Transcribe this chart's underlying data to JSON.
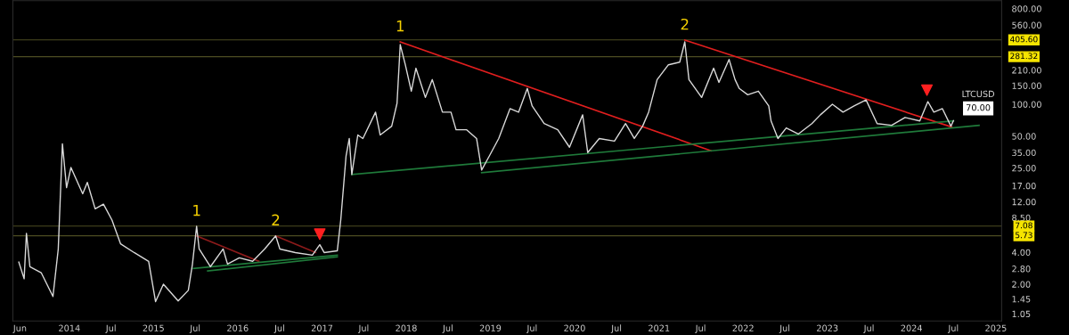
{
  "chart_data": {
    "type": "line",
    "log": "y",
    "grid": false,
    "legend": false,
    "xlim": [
      "2013-05-01",
      "2025-01-26"
    ],
    "ylim": [
      0.9,
      951
    ],
    "xticks": [
      {
        "value": "2013-06-01",
        "label": "Jun"
      },
      {
        "value": "2014-01-01",
        "label": "2014"
      },
      {
        "value": "2014-07-01",
        "label": "Jul"
      },
      {
        "value": "2015-01-01",
        "label": "2015"
      },
      {
        "value": "2015-07-01",
        "label": "Jul"
      },
      {
        "value": "2016-01-01",
        "label": "2016"
      },
      {
        "value": "2016-07-01",
        "label": "Jul"
      },
      {
        "value": "2017-01-01",
        "label": "2017"
      },
      {
        "value": "2017-07-01",
        "label": "Jul"
      },
      {
        "value": "2018-01-01",
        "label": "2018"
      },
      {
        "value": "2018-07-01",
        "label": "Jul"
      },
      {
        "value": "2019-01-01",
        "label": "2019"
      },
      {
        "value": "2019-07-01",
        "label": "Jul"
      },
      {
        "value": "2020-01-01",
        "label": "2020"
      },
      {
        "value": "2020-07-01",
        "label": "Jul"
      },
      {
        "value": "2021-01-01",
        "label": "2021"
      },
      {
        "value": "2021-07-01",
        "label": "Jul"
      },
      {
        "value": "2022-01-01",
        "label": "2022"
      },
      {
        "value": "2022-07-01",
        "label": "Jul"
      },
      {
        "value": "2023-01-01",
        "label": "2023"
      },
      {
        "value": "2023-07-01",
        "label": "Jul"
      },
      {
        "value": "2024-01-01",
        "label": "2024"
      },
      {
        "value": "2024-07-01",
        "label": "Jul"
      },
      {
        "value": "2025-01-01",
        "label": "2025"
      }
    ],
    "yticks": [
      {
        "value": 800,
        "label": "800.00"
      },
      {
        "value": 560,
        "label": "560.00"
      },
      {
        "value": 210,
        "label": "210.00"
      },
      {
        "value": 150,
        "label": "150.00"
      },
      {
        "value": 100,
        "label": "100.00"
      },
      {
        "value": 50,
        "label": "50.00"
      },
      {
        "value": 35,
        "label": "35.00"
      },
      {
        "value": 25,
        "label": "25.00"
      },
      {
        "value": 17,
        "label": "17.00"
      },
      {
        "value": 12,
        "label": "12.00"
      },
      {
        "value": 8.5,
        "label": "8.50"
      },
      {
        "value": 4,
        "label": "4.00"
      },
      {
        "value": 2.8,
        "label": "2.80"
      },
      {
        "value": 2,
        "label": "2.00"
      },
      {
        "value": 1.45,
        "label": "1.45"
      },
      {
        "value": 1.05,
        "label": "1.05"
      }
    ],
    "ref_lines": [
      {
        "axis": "y",
        "value": 405.6,
        "label": "405.60",
        "color": "#4d4d22"
      },
      {
        "axis": "y",
        "value": 281.32,
        "label": "281.32",
        "color": "#4d4d22"
      },
      {
        "axis": "y",
        "value": 7.08,
        "label": "7.08",
        "color": "#4d4d22"
      },
      {
        "axis": "y",
        "value": 5.73,
        "label": "5.73",
        "color": "#4d4d22"
      }
    ],
    "annotations": [
      {
        "text": "1",
        "x": "2015-07-07",
        "y": 7.05
      },
      {
        "text": "2",
        "x": "2016-06-14",
        "y": 5.72
      },
      {
        "text": "1",
        "x": "2017-12-06",
        "y": 388
      },
      {
        "text": "2",
        "x": "2021-04-23",
        "y": 403
      }
    ],
    "series": [
      {
        "name": "LTCUSD",
        "type": "line",
        "color": "#d9d9d9",
        "x": [
          "2013-05-27",
          "2013-06-19",
          "2013-06-29",
          "2013-07-14",
          "2013-09-01",
          "2013-10-22",
          "2013-11-14",
          "2013-12-02",
          "2013-12-20",
          "2014-01-08",
          "2014-02-28",
          "2014-03-20",
          "2014-04-23",
          "2014-05-29",
          "2014-07-05",
          "2014-08-11",
          "2014-10-09",
          "2014-12-11",
          "2015-01-10",
          "2015-02-13",
          "2015-04-18",
          "2015-06-01",
          "2015-06-19",
          "2015-07-07",
          "2015-07-18",
          "2015-09-05",
          "2015-10-30",
          "2015-11-18",
          "2016-01-08",
          "2016-03-06",
          "2016-04-27",
          "2016-06-14",
          "2016-07-02",
          "2016-09-07",
          "2016-11-20",
          "2016-12-22",
          "2017-01-10",
          "2017-03-08",
          "2017-03-23",
          "2017-04-15",
          "2017-04-29",
          "2017-05-10",
          "2017-06-05",
          "2017-06-27",
          "2017-08-21",
          "2017-09-10",
          "2017-10-30",
          "2017-11-22",
          "2017-12-06",
          "2017-12-28",
          "2018-01-23",
          "2018-02-12",
          "2018-03-25",
          "2018-04-24",
          "2018-06-07",
          "2018-07-14",
          "2018-08-05",
          "2018-09-19",
          "2018-11-02",
          "2018-11-24",
          "2018-12-27",
          "2019-02-06",
          "2019-03-27",
          "2019-05-03",
          "2019-06-10",
          "2019-07-01",
          "2019-08-22",
          "2019-10-20",
          "2019-12-10",
          "2020-02-05",
          "2020-02-27",
          "2020-04-17",
          "2020-06-22",
          "2020-08-09",
          "2020-09-16",
          "2020-10-22",
          "2020-11-17",
          "2020-12-24",
          "2021-02-11",
          "2021-04-01",
          "2021-04-23",
          "2021-05-11",
          "2021-07-05",
          "2021-08-26",
          "2021-09-18",
          "2021-11-01",
          "2021-11-27",
          "2021-12-15",
          "2022-01-21",
          "2022-03-08",
          "2022-04-22",
          "2022-05-02",
          "2022-06-01",
          "2022-07-07",
          "2022-08-28",
          "2022-10-26",
          "2022-12-02",
          "2023-01-23",
          "2023-03-10",
          "2023-04-27",
          "2023-06-18",
          "2023-08-05",
          "2023-10-07",
          "2023-12-04",
          "2024-02-06",
          "2024-03-12",
          "2024-04-07",
          "2024-05-14",
          "2024-06-20",
          "2024-07-01"
        ],
        "values": [
          3.23,
          2.25,
          6.05,
          2.93,
          2.57,
          1.53,
          4.3,
          42.4,
          16.3,
          25.3,
          14.3,
          18.3,
          10.3,
          11.4,
          8.06,
          4.82,
          3.98,
          3.29,
          1.37,
          2.0,
          1.39,
          1.75,
          3.1,
          7.05,
          4.3,
          2.93,
          4.3,
          3.1,
          3.55,
          3.29,
          4.3,
          5.72,
          4.3,
          3.98,
          3.76,
          4.72,
          3.98,
          4.13,
          8.06,
          32.4,
          47.5,
          21.7,
          51.3,
          47.5,
          84.2,
          51.3,
          62.1,
          102,
          366,
          236,
          133,
          219,
          116,
          171,
          84.2,
          84.2,
          57.5,
          57.5,
          47.5,
          23.9,
          32.4,
          47.5,
          90.9,
          84.2,
          141,
          96.3,
          65.7,
          57.5,
          39.3,
          79.5,
          35.0,
          47.5,
          44.9,
          65.7,
          47.5,
          62.1,
          84.2,
          171,
          236,
          250,
          388,
          171,
          116,
          219,
          161,
          265,
          171,
          141,
          123,
          133,
          96.3,
          69.6,
          47.5,
          59.8,
          52.3,
          65.7,
          79.5,
          100,
          84.2,
          96.3,
          110,
          65.7,
          63.3,
          75.1,
          69.6,
          106,
          84.2,
          90.9,
          62.1,
          70.0
        ],
        "value_labels": [
          null,
          null,
          null,
          null,
          null,
          null,
          null,
          null,
          null,
          null,
          null,
          null,
          null,
          null,
          null,
          null,
          null,
          null,
          null,
          null,
          null,
          null,
          null,
          null,
          null,
          null,
          null,
          null,
          null,
          null,
          null,
          null,
          null,
          null,
          null,
          null,
          null,
          null,
          null,
          null,
          null,
          null,
          null,
          null,
          null,
          null,
          null,
          null,
          null,
          null,
          null,
          null,
          null,
          null,
          null,
          null,
          null,
          null,
          null,
          null,
          null,
          null,
          null,
          null,
          null,
          null,
          null,
          null,
          null,
          null,
          null,
          null,
          null,
          null,
          null,
          null,
          null,
          null,
          null,
          null,
          null,
          null,
          null,
          null,
          null,
          null,
          null,
          null,
          null,
          null,
          null,
          null,
          null,
          null,
          null,
          null,
          null,
          null,
          null,
          null,
          null,
          null,
          null,
          null,
          null,
          null,
          null,
          null,
          null,
          "70.00"
        ]
      },
      {
        "type": "line",
        "color": "#8b1a1a",
        "x": [
          "2015-07-07",
          "2016-04-02"
        ],
        "values": [
          5.72,
          3.29
        ]
      },
      {
        "type": "line",
        "color": "#8b1a1a",
        "x": [
          "2016-06-14",
          "2016-12-04"
        ],
        "values": [
          5.72,
          3.98
        ]
      },
      {
        "type": "line",
        "color": "#1f7a3a",
        "x": [
          "2015-06-23",
          "2017-03-08"
        ],
        "values": [
          2.82,
          3.76
        ]
      },
      {
        "type": "line",
        "color": "#1f7a3a",
        "x": [
          "2015-08-24",
          "2017-03-08"
        ],
        "values": [
          2.67,
          3.62
        ]
      },
      {
        "type": "line",
        "color": "#e01e1e",
        "x": [
          "2017-12-06",
          "2021-08-15"
        ],
        "values": [
          388,
          36.4
        ]
      },
      {
        "type": "line",
        "color": "#e01e1e",
        "x": [
          "2021-04-23",
          "2024-06-24"
        ],
        "values": [
          403,
          60.9
        ]
      },
      {
        "type": "line",
        "color": "#1f7a3a",
        "x": [
          "2017-05-10",
          "2024-07-01"
        ],
        "values": [
          21.7,
          69.6
        ]
      },
      {
        "type": "line",
        "color": "#1f7a3a",
        "x": [
          "2018-11-24",
          "2024-10-20"
        ],
        "values": [
          22.6,
          63.3
        ]
      },
      {
        "type": "scatter",
        "marker": "triangle",
        "color": "#ff2020",
        "x": [
          "2016-12-22",
          "2024-03-08"
        ],
        "values": [
          5.94,
          136
        ]
      }
    ]
  }
}
